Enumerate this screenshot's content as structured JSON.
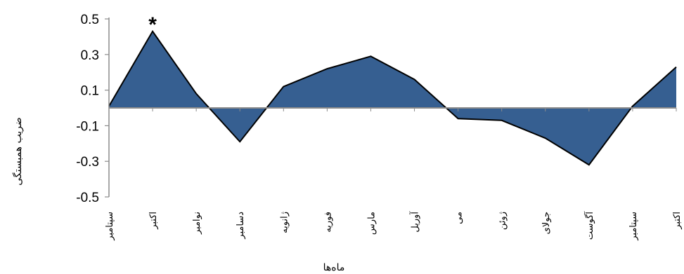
{
  "chart_data": {
    "type": "area",
    "title": "",
    "xlabel": "ماه‌ها",
    "ylabel": "ضریب همبستگی",
    "ylim": [
      -0.5,
      0.5
    ],
    "yticks": [
      0.5,
      0.3,
      0.1,
      -0.1,
      -0.3,
      -0.5
    ],
    "ytick_labels": [
      "0.5",
      "0.3",
      "0.1",
      "-0.1",
      "-0.3",
      "-0.5"
    ],
    "categories": [
      "سپتامبر",
      "اکتبر",
      "نوامبر",
      "دسامبر",
      "ژانویه",
      "فوریه",
      "مارس",
      "آوریل",
      "می",
      "ژوئن",
      "جولای",
      "آگوست",
      "سپتامبر",
      "اکتبر"
    ],
    "values": [
      0.01,
      0.43,
      0.08,
      -0.19,
      0.12,
      0.22,
      0.29,
      0.16,
      -0.06,
      -0.07,
      -0.17,
      -0.32,
      0.01,
      0.23
    ],
    "fill_color": "#365f91",
    "line_color": "#000000",
    "baseline_color": "#8c8c8c",
    "grid": false,
    "legend": "none",
    "annotations": [
      {
        "text": "*",
        "category_index": 1
      }
    ]
  }
}
